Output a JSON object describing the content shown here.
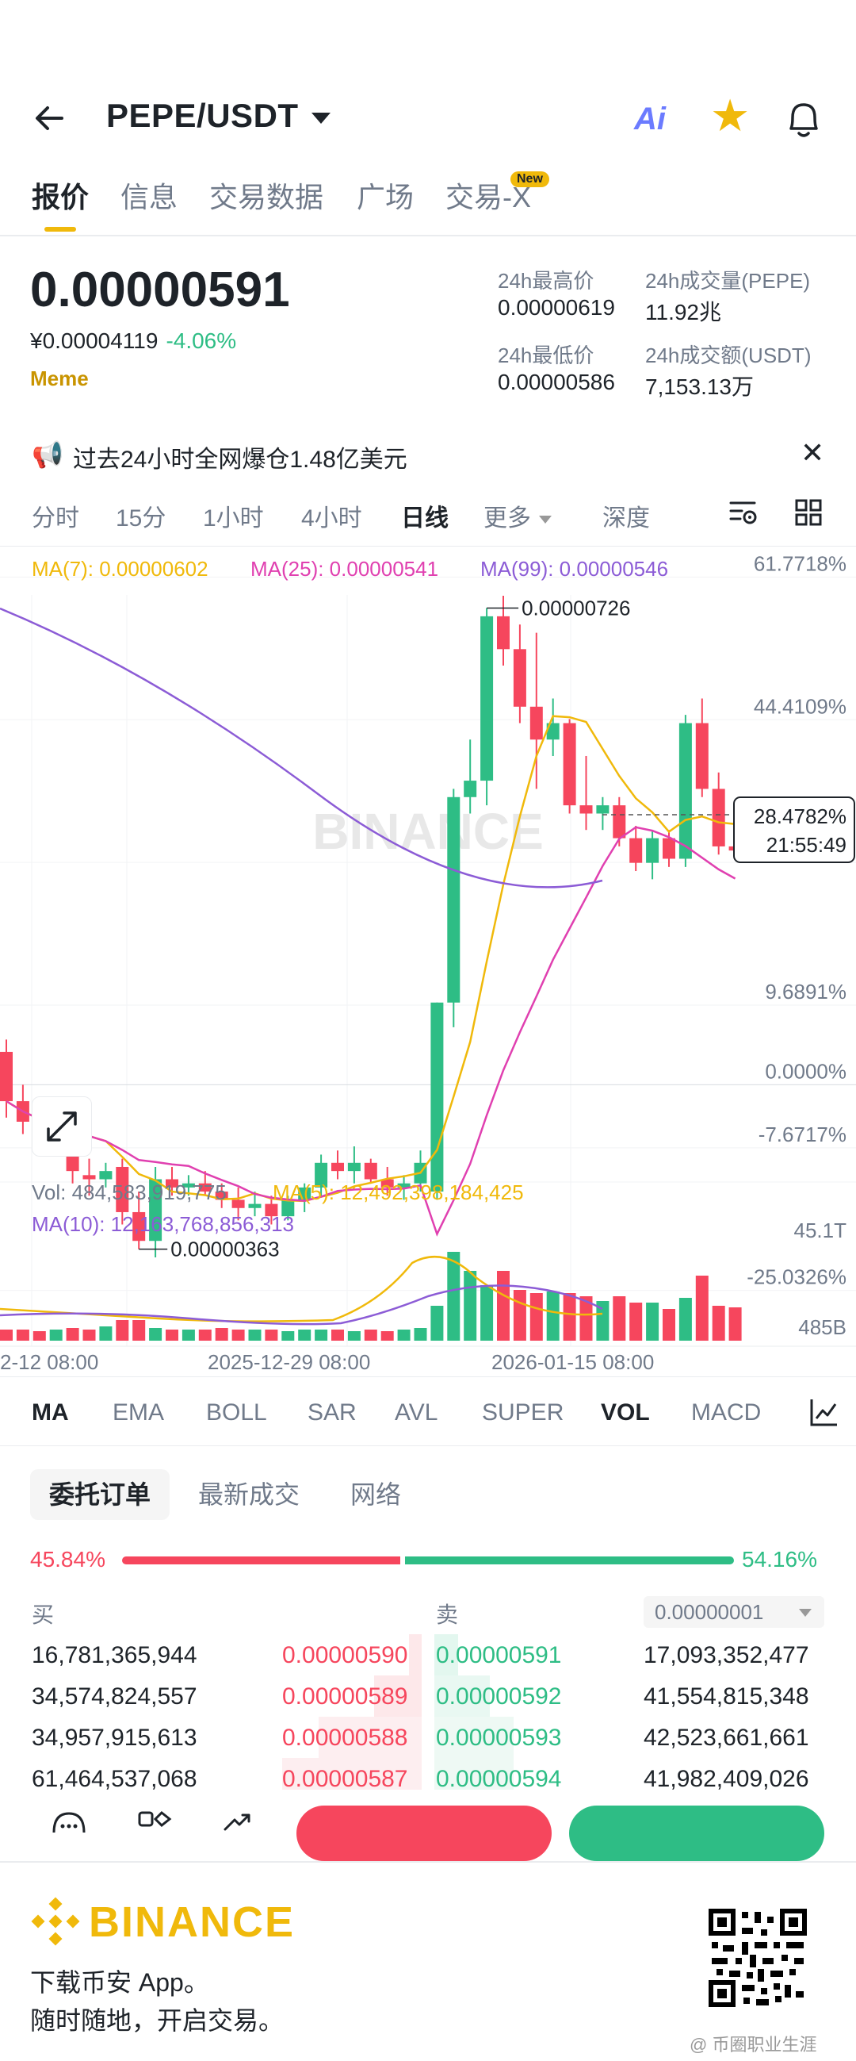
{
  "header": {
    "pair": "PEPE/USDT",
    "ai_label": "Ai"
  },
  "tabs": [
    {
      "label": "报价"
    },
    {
      "label": "信息"
    },
    {
      "label": "交易数据"
    },
    {
      "label": "广场"
    },
    {
      "label": "交易-X",
      "badge": "New"
    }
  ],
  "price": {
    "last": "0.00000591",
    "cny": "¥0.00004119",
    "change": "-4.06%",
    "tag": "Meme"
  },
  "stats": {
    "high_label": "24h最高价",
    "high": "0.00000619",
    "low_label": "24h最低价",
    "low": "0.00000586",
    "vol_label": "24h成交量(PEPE)",
    "vol": "11.92兆",
    "amt_label": "24h成交额(USDT)",
    "amt": "7,153.13万"
  },
  "banner": {
    "text": "过去24小时全网爆仓1.48亿美元"
  },
  "timeframes": [
    "分时",
    "15分",
    "1小时",
    "4小时",
    "日线",
    "更多",
    "深度"
  ],
  "chart_data": {
    "type": "candlestick",
    "ma_legend": {
      "ma7": "MA(7): 0.00000602",
      "ma25": "MA(25): 0.00000541",
      "ma99": "MA(99): 0.00000546"
    },
    "y_ticks": [
      "61.7718%",
      "44.4109%",
      "9.6891%",
      "0.0000%",
      "-7.6717%",
      "-25.0326%"
    ],
    "current_marker": {
      "value": "28.4782%",
      "countdown": "21:55:49"
    },
    "high_label": "0.00000726",
    "low_label": "0.00000363",
    "watermark": "BINANCE",
    "candles": [
      {
        "o": 4.0,
        "h": 5.5,
        "l": -4.0,
        "c": -2.0
      },
      {
        "o": -2.0,
        "h": 0.0,
        "l": -6.0,
        "c": -4.5
      },
      {
        "o": -4.5,
        "h": -3.0,
        "l": -7.0,
        "c": -6.0
      },
      {
        "o": -6.0,
        "h": -2.0,
        "l": -7.5,
        "c": -3.0
      },
      {
        "o": -3.0,
        "h": -1.5,
        "l": -12.0,
        "c": -10.5
      },
      {
        "o": -11.0,
        "h": -9.0,
        "l": -13.5,
        "c": -11.5
      },
      {
        "o": -11.5,
        "h": -9.5,
        "l": -12.5,
        "c": -10.5
      },
      {
        "o": -10.0,
        "h": -9.0,
        "l": -17.0,
        "c": -15.5
      },
      {
        "o": -15.5,
        "h": -13.0,
        "l": -20.0,
        "c": -19.0
      },
      {
        "o": -19.0,
        "h": -10.0,
        "l": -21.0,
        "c": -11.5
      },
      {
        "o": -11.5,
        "h": -10.0,
        "l": -13.5,
        "c": -12.5
      },
      {
        "o": -12.5,
        "h": -11.0,
        "l": -13.5,
        "c": -12.0
      },
      {
        "o": -12.0,
        "h": -10.5,
        "l": -13.5,
        "c": -13.0
      },
      {
        "o": -13.0,
        "h": -12.0,
        "l": -15.0,
        "c": -14.0
      },
      {
        "o": -14.0,
        "h": -12.5,
        "l": -16.5,
        "c": -15.0
      },
      {
        "o": -15.0,
        "h": -13.0,
        "l": -16.0,
        "c": -14.5
      },
      {
        "o": -14.5,
        "h": -13.5,
        "l": -17.0,
        "c": -16.0
      },
      {
        "o": -16.0,
        "h": -13.5,
        "l": -16.5,
        "c": -14.0
      },
      {
        "o": -14.0,
        "h": -12.0,
        "l": -15.5,
        "c": -12.5
      },
      {
        "o": -12.5,
        "h": -8.5,
        "l": -13.5,
        "c": -9.5
      },
      {
        "o": -9.5,
        "h": -8.0,
        "l": -11.5,
        "c": -10.5
      },
      {
        "o": -10.5,
        "h": -7.5,
        "l": -12.0,
        "c": -9.5
      },
      {
        "o": -9.5,
        "h": -9.0,
        "l": -12.0,
        "c": -11.5
      },
      {
        "o": -11.5,
        "h": -10.0,
        "l": -13.5,
        "c": -12.5
      },
      {
        "o": -12.5,
        "h": -11.0,
        "l": -14.0,
        "c": -12.0
      },
      {
        "o": -12.0,
        "h": -8.0,
        "l": -13.0,
        "c": -9.5
      },
      {
        "o": -13.0,
        "h": 10.0,
        "l": -14.0,
        "c": 10.0
      },
      {
        "o": 10.0,
        "h": 36.0,
        "l": 7.0,
        "c": 35.0
      },
      {
        "o": 35.0,
        "h": 42.0,
        "l": 33.0,
        "c": 37.0
      },
      {
        "o": 37.0,
        "h": 58.0,
        "l": 34.0,
        "c": 57.0
      },
      {
        "o": 57.0,
        "h": 59.5,
        "l": 51.0,
        "c": 53.0
      },
      {
        "o": 53.0,
        "h": 56.0,
        "l": 44.0,
        "c": 46.0
      },
      {
        "o": 46.0,
        "h": 55.0,
        "l": 36.0,
        "c": 42.0
      },
      {
        "o": 42.0,
        "h": 47.0,
        "l": 40.0,
        "c": 44.0
      },
      {
        "o": 44.0,
        "h": 44.5,
        "l": 33.0,
        "c": 34.0
      },
      {
        "o": 34.0,
        "h": 40.0,
        "l": 31.0,
        "c": 33.0
      },
      {
        "o": 33.0,
        "h": 35.0,
        "l": 31.0,
        "c": 34.0
      },
      {
        "o": 34.0,
        "h": 35.0,
        "l": 29.0,
        "c": 30.0
      },
      {
        "o": 30.0,
        "h": 31.5,
        "l": 26.0,
        "c": 27.0
      },
      {
        "o": 27.0,
        "h": 31.0,
        "l": 25.0,
        "c": 30.0
      },
      {
        "o": 30.0,
        "h": 31.0,
        "l": 26.5,
        "c": 27.5
      },
      {
        "o": 27.5,
        "h": 45.0,
        "l": 26.5,
        "c": 44.0
      },
      {
        "o": 44.0,
        "h": 47.0,
        "l": 35.0,
        "c": 36.0
      },
      {
        "o": 36.0,
        "h": 38.0,
        "l": 28.0,
        "c": 29.0
      },
      {
        "o": 29.0,
        "h": 29.5,
        "l": 27.5,
        "c": 28.5
      }
    ],
    "volume_legend": {
      "vol": "Vol: 484,583,919,775",
      "ma5": "MA(5): 12,492,398,184,425",
      "ma10": "MA(10): 12,163,768,856,313"
    },
    "volume_ticks": [
      "45.1T",
      "485B"
    ],
    "x_labels": [
      "2-12 08:00",
      "2025-12-29 08:00",
      "2026-01-15 08:00"
    ]
  },
  "indicators": [
    "MA",
    "EMA",
    "BOLL",
    "SAR",
    "AVL",
    "SUPER",
    "VOL",
    "MACD"
  ],
  "orderbook": {
    "tabs": [
      "委托订单",
      "最新成交",
      "网络"
    ],
    "buy_pct": "45.84%",
    "sell_pct": "54.16%",
    "buy_ratio": 0.4584,
    "buy_label": "买",
    "sell_label": "卖",
    "precision": "0.00000001",
    "rows": [
      {
        "bid_qty": "16,781,365,944",
        "bid": "0.00000590",
        "ask": "0.00000591",
        "ask_qty": "17,093,352,477"
      },
      {
        "bid_qty": "34,574,824,557",
        "bid": "0.00000589",
        "ask": "0.00000592",
        "ask_qty": "41,554,815,348"
      },
      {
        "bid_qty": "34,957,915,613",
        "bid": "0.00000588",
        "ask": "0.00000593",
        "ask_qty": "42,523,661,661"
      },
      {
        "bid_qty": "61,464,537,068",
        "bid": "0.00000587",
        "ask": "0.00000594",
        "ask_qty": "41,982,409,026"
      }
    ]
  },
  "promo": {
    "brand": "BINANCE",
    "line1": "下载币安 App。",
    "line2": "随时随地，开启交易。",
    "watermark": "@ 币圈职业生涯"
  },
  "colors": {
    "up": "#2ebd85",
    "down": "#f6465d",
    "brand": "#f0b90b",
    "ma7": "#f0b90b",
    "ma25": "#e040b0",
    "ma99": "#8c5cd6"
  }
}
